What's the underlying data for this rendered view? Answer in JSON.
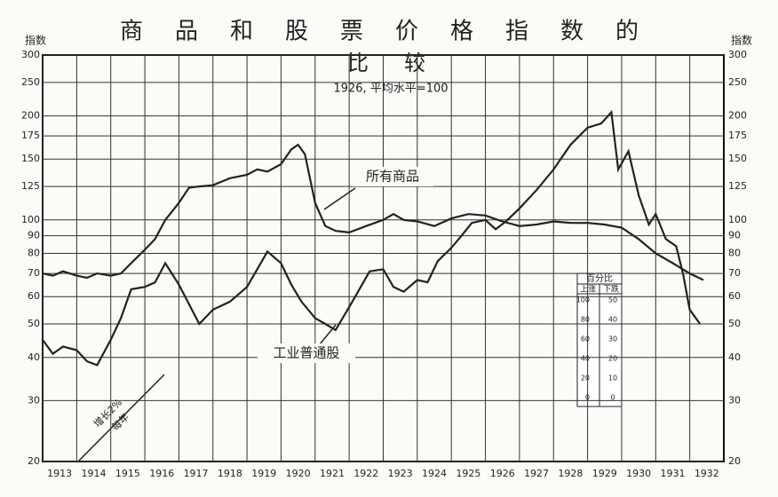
{
  "chart_data": {
    "type": "line",
    "title": "商品和股票价格指数的",
    "title_line2": "比较",
    "subtitle": "1926, 平均水平=100",
    "y_label": "指数",
    "y2_label": "指数",
    "log_scale": true,
    "grid": true,
    "xlim": [
      1913,
      1933
    ],
    "ylim": [
      20,
      300
    ],
    "xticks": [
      1913,
      1914,
      1915,
      1916,
      1917,
      1918,
      1919,
      1920,
      1921,
      1922,
      1923,
      1924,
      1925,
      1926,
      1927,
      1928,
      1929,
      1930,
      1931,
      1932
    ],
    "yticks": [
      20,
      30,
      40,
      50,
      60,
      70,
      80,
      90,
      100,
      125,
      150,
      175,
      200,
      250,
      300
    ],
    "series": [
      {
        "name": "所有商品",
        "color": "#222222",
        "x": [
          1913,
          1913.3,
          1913.6,
          1914,
          1914.3,
          1914.6,
          1915,
          1915.3,
          1915.6,
          1916,
          1916.3,
          1916.6,
          1917,
          1917.3,
          1917.6,
          1918,
          1918.5,
          1919,
          1919.3,
          1919.6,
          1920,
          1920.3,
          1920.5,
          1920.7,
          1921,
          1921.3,
          1921.6,
          1922,
          1922.5,
          1923,
          1923.3,
          1923.6,
          1924,
          1924.5,
          1925,
          1925.5,
          1926,
          1926.5,
          1927,
          1927.5,
          1928,
          1928.5,
          1929,
          1929.5,
          1930,
          1930.5,
          1931,
          1931.5,
          1932,
          1932.4
        ],
        "values": [
          70,
          69,
          71,
          69,
          68,
          70,
          69,
          70,
          75,
          82,
          88,
          100,
          112,
          124,
          125,
          126,
          132,
          135,
          140,
          138,
          145,
          160,
          165,
          155,
          112,
          96,
          93,
          92,
          96,
          100,
          104,
          100,
          99,
          96,
          101,
          104,
          103,
          99,
          96,
          97,
          99,
          98,
          98,
          97,
          95,
          88,
          80,
          75,
          70,
          67
        ]
      },
      {
        "name": "工业普通股",
        "color": "#222222",
        "x": [
          1913,
          1913.3,
          1913.6,
          1914,
          1914.3,
          1914.6,
          1915,
          1915.3,
          1915.6,
          1916,
          1916.3,
          1916.6,
          1917,
          1917.3,
          1917.6,
          1918,
          1918.5,
          1919,
          1919.3,
          1919.6,
          1920,
          1920.3,
          1920.6,
          1921,
          1921.3,
          1921.6,
          1922,
          1922.3,
          1922.6,
          1923,
          1923.3,
          1923.6,
          1924,
          1924.3,
          1924.6,
          1925,
          1925.3,
          1925.6,
          1926,
          1926.3,
          1926.6,
          1927,
          1927.5,
          1928,
          1928.5,
          1929,
          1929.4,
          1929.7,
          1929.9,
          1930.2,
          1930.5,
          1930.8,
          1931,
          1931.3,
          1931.6,
          1931.8,
          1932,
          1932.3
        ],
        "values": [
          45,
          41,
          43,
          42,
          39,
          38,
          45,
          52,
          63,
          64,
          66,
          75,
          65,
          57,
          50,
          55,
          58,
          64,
          72,
          81,
          75,
          65,
          58,
          52,
          50,
          48,
          56,
          63,
          71,
          72,
          64,
          62,
          67,
          66,
          76,
          83,
          90,
          98,
          100,
          94,
          99,
          108,
          122,
          140,
          165,
          185,
          190,
          205,
          140,
          158,
          118,
          97,
          104,
          88,
          84,
          70,
          55,
          50
        ]
      }
    ],
    "annotations": [
      {
        "text": "增长2%"
      },
      {
        "text": "每年"
      }
    ],
    "inset": {
      "title": "百分比",
      "up_label": "上涨",
      "down_label": "下跌",
      "up_ticks": [
        0,
        20,
        40,
        60,
        80,
        100
      ],
      "down_ticks": [
        0,
        10,
        20,
        30,
        40,
        50
      ]
    }
  }
}
